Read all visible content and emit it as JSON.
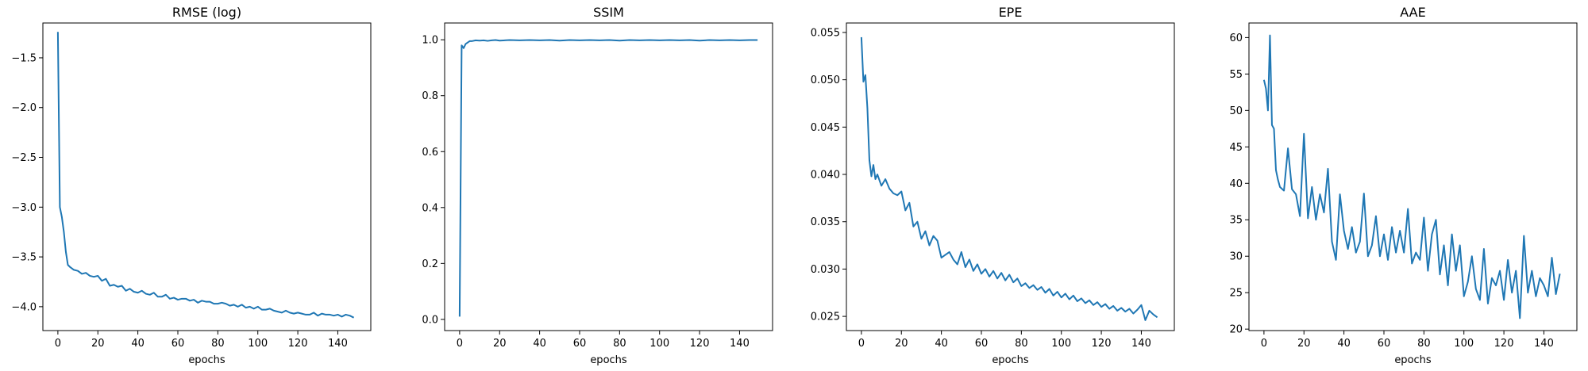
{
  "chart_data": [
    {
      "type": "line",
      "title": "RMSE (log)",
      "xlabel": "epochs",
      "ylabel": "",
      "xlim": [
        -7.5,
        156.5
      ],
      "ylim": [
        -4.24,
        -1.15
      ],
      "xticks": [
        0,
        20,
        40,
        60,
        80,
        100,
        120,
        140
      ],
      "yticks": [
        -4.0,
        -3.5,
        -3.0,
        -2.5,
        -2.0,
        -1.5
      ],
      "ytick_labels": [
        "−4.0",
        "−3.5",
        "−3.0",
        "−2.5",
        "−2.0",
        "−1.5"
      ],
      "color": "#1f77b4",
      "x": [
        0,
        1,
        2,
        3,
        4,
        5,
        6,
        8,
        10,
        12,
        14,
        16,
        18,
        20,
        22,
        24,
        26,
        28,
        30,
        32,
        34,
        36,
        38,
        40,
        42,
        44,
        46,
        48,
        50,
        52,
        54,
        56,
        58,
        60,
        62,
        64,
        66,
        68,
        70,
        72,
        74,
        76,
        78,
        80,
        82,
        84,
        86,
        88,
        90,
        92,
        94,
        96,
        98,
        100,
        102,
        104,
        106,
        108,
        110,
        112,
        114,
        116,
        118,
        120,
        122,
        124,
        126,
        128,
        130,
        132,
        134,
        136,
        138,
        140,
        142,
        144,
        146,
        148
      ],
      "values": [
        -1.24,
        -3.0,
        -3.1,
        -3.25,
        -3.45,
        -3.58,
        -3.6,
        -3.63,
        -3.64,
        -3.67,
        -3.66,
        -3.69,
        -3.7,
        -3.69,
        -3.74,
        -3.72,
        -3.79,
        -3.78,
        -3.8,
        -3.79,
        -3.84,
        -3.82,
        -3.85,
        -3.86,
        -3.84,
        -3.87,
        -3.88,
        -3.86,
        -3.9,
        -3.9,
        -3.88,
        -3.92,
        -3.91,
        -3.93,
        -3.92,
        -3.92,
        -3.94,
        -3.93,
        -3.96,
        -3.94,
        -3.95,
        -3.95,
        -3.97,
        -3.97,
        -3.96,
        -3.97,
        -3.99,
        -3.98,
        -4.0,
        -3.98,
        -4.01,
        -4.0,
        -4.02,
        -4.0,
        -4.03,
        -4.03,
        -4.02,
        -4.04,
        -4.05,
        -4.06,
        -4.04,
        -4.06,
        -4.07,
        -4.06,
        -4.07,
        -4.08,
        -4.08,
        -4.06,
        -4.09,
        -4.07,
        -4.08,
        -4.08,
        -4.09,
        -4.08,
        -4.1,
        -4.08,
        -4.09,
        -4.11
      ]
    },
    {
      "type": "line",
      "title": "SSIM",
      "xlabel": "epochs",
      "ylabel": "",
      "xlim": [
        -7.5,
        156.5
      ],
      "ylim": [
        -0.04,
        1.06
      ],
      "xticks": [
        0,
        20,
        40,
        60,
        80,
        100,
        120,
        140
      ],
      "yticks": [
        0.0,
        0.2,
        0.4,
        0.6,
        0.8,
        1.0
      ],
      "ytick_labels": [
        "0.0",
        "0.2",
        "0.4",
        "0.6",
        "0.8",
        "1.0"
      ],
      "color": "#1f77b4",
      "x": [
        0,
        1,
        2,
        3,
        4,
        5,
        6,
        8,
        10,
        12,
        14,
        16,
        18,
        20,
        25,
        30,
        35,
        40,
        45,
        50,
        55,
        60,
        65,
        70,
        75,
        80,
        85,
        90,
        95,
        100,
        105,
        110,
        115,
        120,
        125,
        130,
        135,
        140,
        145,
        149
      ],
      "values": [
        0.01,
        0.98,
        0.97,
        0.985,
        0.99,
        0.995,
        0.995,
        0.998,
        0.997,
        0.998,
        0.996,
        0.998,
        0.999,
        0.997,
        0.999,
        0.998,
        0.999,
        0.998,
        0.999,
        0.997,
        0.999,
        0.998,
        0.999,
        0.998,
        0.999,
        0.997,
        0.999,
        0.998,
        0.999,
        0.998,
        0.999,
        0.998,
        0.999,
        0.997,
        0.999,
        0.998,
        0.999,
        0.998,
        0.999,
        0.999
      ]
    },
    {
      "type": "line",
      "title": "EPE",
      "xlabel": "epochs",
      "ylabel": "",
      "xlim": [
        -7.5,
        156.5
      ],
      "ylim": [
        0.0235,
        0.056
      ],
      "xticks": [
        0,
        20,
        40,
        60,
        80,
        100,
        120,
        140
      ],
      "yticks": [
        0.025,
        0.03,
        0.035,
        0.04,
        0.045,
        0.05,
        0.055
      ],
      "ytick_labels": [
        "0.025",
        "0.030",
        "0.035",
        "0.040",
        "0.045",
        "0.050",
        "0.055"
      ],
      "color": "#1f77b4",
      "x": [
        0,
        1,
        2,
        3,
        4,
        5,
        6,
        7,
        8,
        10,
        12,
        14,
        16,
        18,
        20,
        22,
        24,
        26,
        28,
        30,
        32,
        34,
        36,
        38,
        40,
        42,
        44,
        46,
        48,
        50,
        52,
        54,
        56,
        58,
        60,
        62,
        64,
        66,
        68,
        70,
        72,
        74,
        76,
        78,
        80,
        82,
        84,
        86,
        88,
        90,
        92,
        94,
        96,
        98,
        100,
        102,
        104,
        106,
        108,
        110,
        112,
        114,
        116,
        118,
        120,
        122,
        124,
        126,
        128,
        130,
        132,
        134,
        136,
        138,
        140,
        142,
        144,
        146,
        148
      ],
      "values": [
        0.0545,
        0.0498,
        0.0505,
        0.047,
        0.0415,
        0.0398,
        0.041,
        0.0395,
        0.04,
        0.0388,
        0.0395,
        0.0385,
        0.038,
        0.0378,
        0.0382,
        0.0362,
        0.037,
        0.0345,
        0.035,
        0.0332,
        0.034,
        0.0325,
        0.0335,
        0.033,
        0.0312,
        0.0315,
        0.0318,
        0.031,
        0.0305,
        0.0318,
        0.0302,
        0.031,
        0.0298,
        0.0305,
        0.0295,
        0.03,
        0.0292,
        0.0298,
        0.029,
        0.0296,
        0.0288,
        0.0294,
        0.0286,
        0.029,
        0.0282,
        0.0285,
        0.028,
        0.0283,
        0.0278,
        0.0281,
        0.0275,
        0.0279,
        0.0272,
        0.0276,
        0.027,
        0.0274,
        0.0268,
        0.0272,
        0.0266,
        0.0269,
        0.0264,
        0.0267,
        0.0262,
        0.0265,
        0.026,
        0.0263,
        0.0258,
        0.0261,
        0.0256,
        0.0259,
        0.0255,
        0.0258,
        0.0253,
        0.0257,
        0.0262,
        0.0246,
        0.0256,
        0.0252,
        0.0249
      ]
    },
    {
      "type": "line",
      "title": "AAE",
      "xlabel": "epochs",
      "ylabel": "",
      "xlim": [
        -7.5,
        156.5
      ],
      "ylim": [
        19.8,
        62.0
      ],
      "xticks": [
        0,
        20,
        40,
        60,
        80,
        100,
        120,
        140
      ],
      "yticks": [
        20,
        25,
        30,
        35,
        40,
        45,
        50,
        55,
        60
      ],
      "ytick_labels": [
        "20",
        "25",
        "30",
        "35",
        "40",
        "45",
        "50",
        "55",
        "60"
      ],
      "color": "#1f77b4",
      "x": [
        0,
        1,
        2,
        3,
        4,
        5,
        6,
        7,
        8,
        10,
        12,
        14,
        16,
        18,
        20,
        22,
        24,
        26,
        28,
        30,
        32,
        34,
        36,
        38,
        40,
        42,
        44,
        46,
        48,
        50,
        52,
        54,
        56,
        58,
        60,
        62,
        64,
        66,
        68,
        70,
        72,
        74,
        76,
        78,
        80,
        82,
        84,
        86,
        88,
        90,
        92,
        94,
        96,
        98,
        100,
        102,
        104,
        106,
        108,
        110,
        112,
        114,
        116,
        118,
        120,
        122,
        124,
        126,
        128,
        130,
        132,
        134,
        136,
        138,
        140,
        142,
        144,
        146,
        148
      ],
      "values": [
        54.2,
        53.0,
        50.0,
        60.3,
        48.0,
        47.5,
        41.8,
        40.5,
        39.5,
        39.0,
        44.8,
        39.2,
        38.5,
        35.5,
        46.8,
        35.2,
        39.5,
        35.0,
        38.5,
        36.0,
        42.0,
        32.0,
        29.5,
        38.5,
        33.5,
        31.0,
        34.0,
        30.5,
        32.0,
        38.6,
        30.0,
        31.5,
        35.5,
        30.0,
        33.0,
        29.5,
        34.0,
        30.5,
        33.5,
        30.5,
        36.5,
        29.0,
        30.5,
        29.5,
        35.3,
        28.0,
        33.0,
        35.0,
        27.5,
        31.5,
        26.0,
        33.0,
        28.0,
        31.5,
        24.5,
        26.5,
        30.0,
        25.5,
        24.0,
        31.0,
        23.5,
        27.0,
        26.0,
        28.0,
        24.0,
        29.5,
        25.0,
        28.0,
        21.5,
        32.8,
        25.0,
        28.0,
        24.5,
        27.0,
        26.0,
        24.5,
        29.8,
        24.8,
        27.6
      ]
    }
  ]
}
